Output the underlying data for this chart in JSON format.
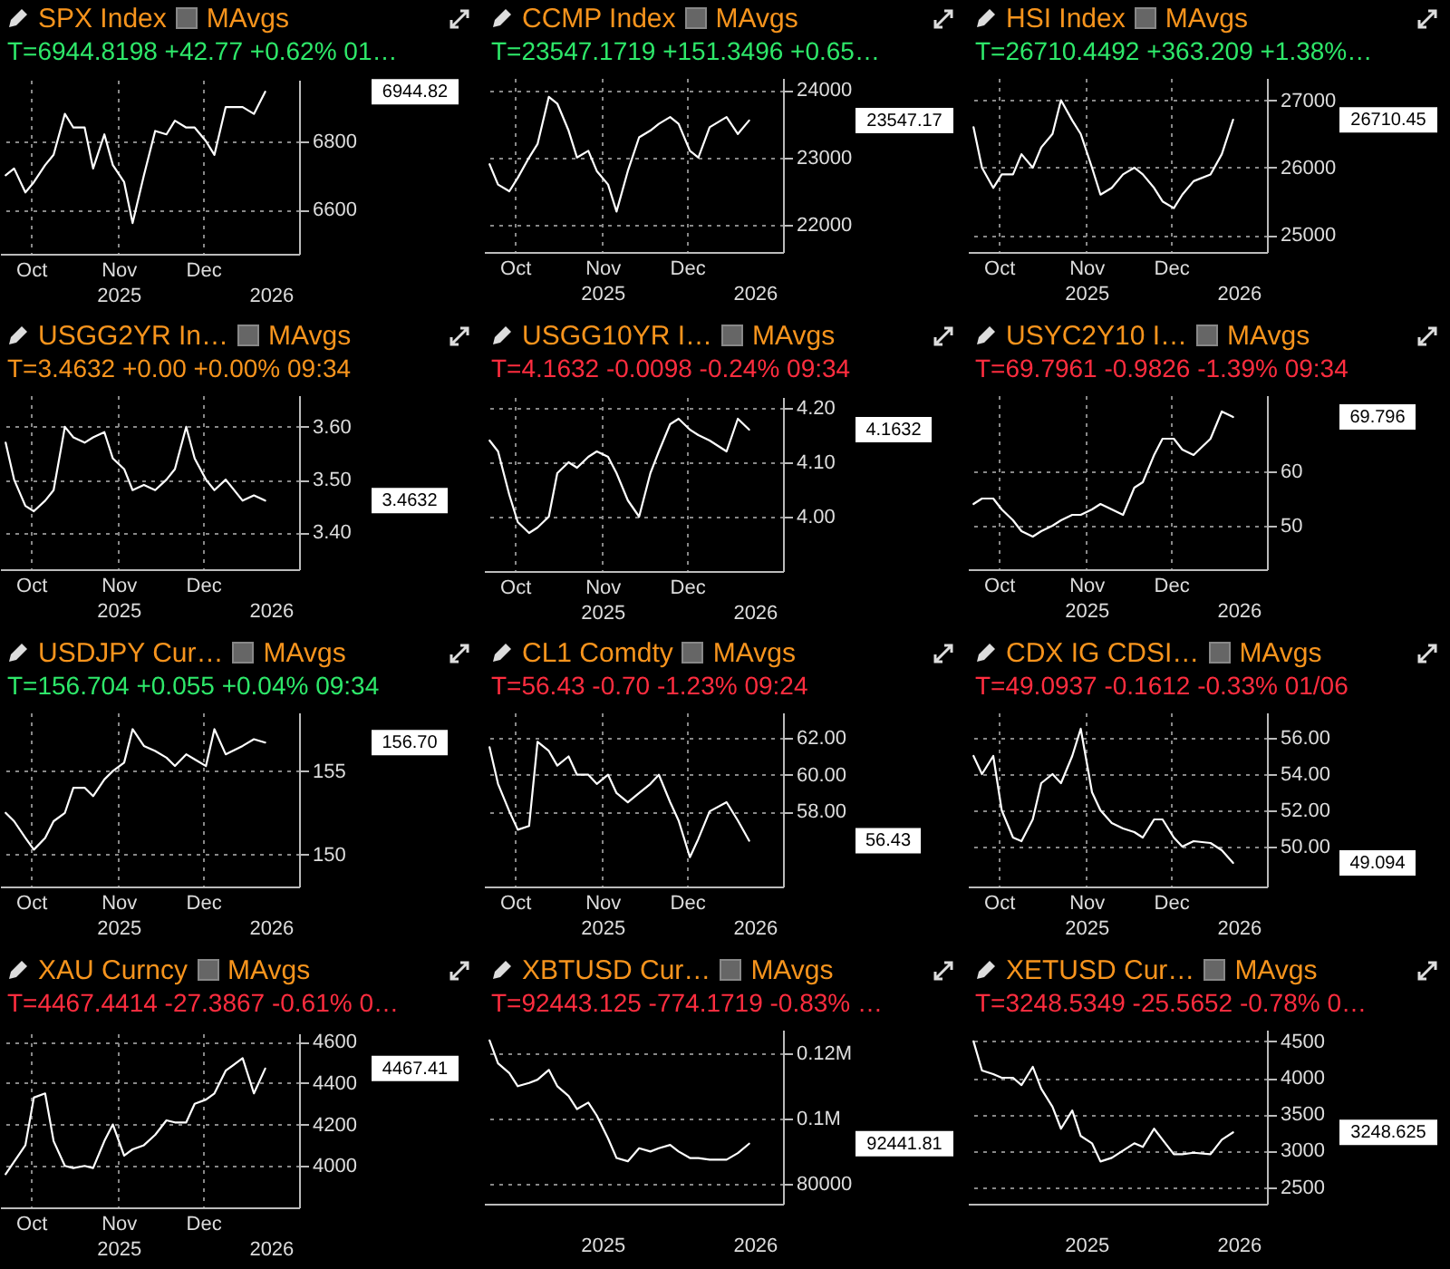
{
  "chart_data": [
    {
      "type": "line",
      "title": "SPX Index",
      "subtitle": "T=6944.8198 +42.77 +0.62% 01…",
      "x": [
        "2025-10-06",
        "2025-10-09",
        "2025-10-13",
        "2025-10-16",
        "2025-10-20",
        "2025-10-23",
        "2025-10-27",
        "2025-10-30",
        "2025-11-03",
        "2025-11-06",
        "2025-11-10",
        "2025-11-13",
        "2025-11-17",
        "2025-11-20",
        "2025-11-24",
        "2025-11-28",
        "2025-12-02",
        "2025-12-05",
        "2025-12-09",
        "2025-12-12",
        "2025-12-16",
        "2025-12-19",
        "2025-12-23",
        "2025-12-29",
        "2026-01-02",
        "2026-01-06"
      ],
      "series": [
        {
          "color": "#ffffff",
          "values": [
            6700,
            6720,
            6650,
            6680,
            6730,
            6760,
            6880,
            6840,
            6840,
            6720,
            6820,
            6730,
            6680,
            6560,
            6700,
            6830,
            6820,
            6860,
            6840,
            6840,
            6800,
            6760,
            6900,
            6900,
            6880,
            6945
          ]
        }
      ],
      "xlim": [
        "2025-10-04",
        "2026-01-18"
      ],
      "xticks": [
        {
          "value": "2025-10-15",
          "label": "Oct"
        },
        {
          "value": "2025-11-15",
          "label": "Nov"
        },
        {
          "value": "2025-12-15",
          "label": "Dec"
        }
      ],
      "x2lim": [
        "2025-10-04",
        "2026-01-18"
      ],
      "x2ticks": [
        {
          "value": "2025-11-15",
          "label": "2025"
        },
        {
          "value": "2026-01-08",
          "label": "2026"
        }
      ],
      "ylim": [
        6470,
        6980
      ],
      "yticks": [
        6600,
        6800
      ],
      "grid": true,
      "annotations": [
        "MAvgs",
        "6944.82"
      ]
    },
    {
      "type": "line",
      "title": "CCMP Index",
      "subtitle": "T=23547.1719 +151.3496 +0.65…",
      "x": [
        "2025-10-06",
        "2025-10-09",
        "2025-10-13",
        "2025-10-16",
        "2025-10-20",
        "2025-10-23",
        "2025-10-27",
        "2025-10-30",
        "2025-11-03",
        "2025-11-06",
        "2025-11-10",
        "2025-11-13",
        "2025-11-17",
        "2025-11-20",
        "2025-11-24",
        "2025-11-28",
        "2025-12-02",
        "2025-12-05",
        "2025-12-09",
        "2025-12-12",
        "2025-12-16",
        "2025-12-19",
        "2025-12-23",
        "2025-12-29",
        "2026-01-02",
        "2026-01-06"
      ],
      "series": [
        {
          "color": "#ffffff",
          "values": [
            22900,
            22600,
            22500,
            22700,
            23000,
            23200,
            23900,
            23800,
            23400,
            23000,
            23100,
            22800,
            22600,
            22200,
            22800,
            23300,
            23400,
            23500,
            23600,
            23500,
            23100,
            23000,
            23450,
            23600,
            23350,
            23550
          ]
        }
      ],
      "xlim": [
        "2025-10-04",
        "2026-01-18"
      ],
      "xticks": [
        {
          "value": "2025-10-15",
          "label": "Oct"
        },
        {
          "value": "2025-11-15",
          "label": "Nov"
        },
        {
          "value": "2025-12-15",
          "label": "Dec"
        }
      ],
      "x2lim": [
        "2025-10-04",
        "2026-01-18"
      ],
      "x2ticks": [
        {
          "value": "2025-11-15",
          "label": "2025"
        },
        {
          "value": "2026-01-08",
          "label": "2026"
        }
      ],
      "ylim": [
        21600,
        24180
      ],
      "yticks": [
        22000,
        23000,
        24000
      ],
      "grid": true,
      "annotations": [
        "MAvgs",
        "23547.17"
      ]
    },
    {
      "type": "line",
      "title": "HSI Index",
      "subtitle": "T=26710.4492 +363.209 +1.38%…",
      "x": [
        "2025-10-06",
        "2025-10-09",
        "2025-10-13",
        "2025-10-16",
        "2025-10-20",
        "2025-10-23",
        "2025-10-27",
        "2025-10-30",
        "2025-11-03",
        "2025-11-06",
        "2025-11-10",
        "2025-11-13",
        "2025-11-17",
        "2025-11-20",
        "2025-11-24",
        "2025-11-28",
        "2025-12-02",
        "2025-12-05",
        "2025-12-09",
        "2025-12-12",
        "2025-12-16",
        "2025-12-19",
        "2025-12-23",
        "2025-12-29",
        "2026-01-02",
        "2026-01-06"
      ],
      "series": [
        {
          "color": "#ffffff",
          "values": [
            26600,
            26000,
            25700,
            25900,
            25900,
            26200,
            26000,
            26300,
            26500,
            27000,
            26700,
            26500,
            26000,
            25600,
            25700,
            25900,
            26000,
            25900,
            25700,
            25500,
            25400,
            25600,
            25800,
            25900,
            26200,
            26710
          ]
        }
      ],
      "xlim": [
        "2025-10-04",
        "2026-01-18"
      ],
      "xticks": [
        {
          "value": "2025-10-15",
          "label": "Oct"
        },
        {
          "value": "2025-11-15",
          "label": "Nov"
        },
        {
          "value": "2025-12-15",
          "label": "Dec"
        }
      ],
      "x2lim": [
        "2025-10-04",
        "2026-01-18"
      ],
      "x2ticks": [
        {
          "value": "2025-11-15",
          "label": "2025"
        },
        {
          "value": "2026-01-08",
          "label": "2026"
        }
      ],
      "ylim": [
        24750,
        27330
      ],
      "yticks": [
        25000,
        26000,
        27000
      ],
      "grid": true,
      "annotations": [
        "MAvgs",
        "26710.45"
      ]
    },
    {
      "type": "line",
      "title": "USGG2YR In…",
      "subtitle": "T=3.4632 +0.00 +0.00% 09:34",
      "x": [
        "2025-10-06",
        "2025-10-09",
        "2025-10-13",
        "2025-10-16",
        "2025-10-20",
        "2025-10-23",
        "2025-10-27",
        "2025-10-30",
        "2025-11-03",
        "2025-11-06",
        "2025-11-10",
        "2025-11-13",
        "2025-11-17",
        "2025-11-20",
        "2025-11-24",
        "2025-11-28",
        "2025-12-02",
        "2025-12-05",
        "2025-12-09",
        "2025-12-12",
        "2025-12-16",
        "2025-12-19",
        "2025-12-23",
        "2025-12-29",
        "2026-01-02",
        "2026-01-06"
      ],
      "series": [
        {
          "color": "#ffffff",
          "values": [
            3.57,
            3.5,
            3.45,
            3.44,
            3.46,
            3.48,
            3.6,
            3.58,
            3.57,
            3.58,
            3.59,
            3.54,
            3.52,
            3.48,
            3.49,
            3.48,
            3.5,
            3.52,
            3.6,
            3.54,
            3.5,
            3.48,
            3.5,
            3.46,
            3.47,
            3.46
          ]
        }
      ],
      "xlim": [
        "2025-10-04",
        "2026-01-18"
      ],
      "xticks": [
        {
          "value": "2025-10-15",
          "label": "Oct"
        },
        {
          "value": "2025-11-15",
          "label": "Nov"
        },
        {
          "value": "2025-12-15",
          "label": "Dec"
        }
      ],
      "x2lim": [
        "2025-10-04",
        "2026-01-18"
      ],
      "x2ticks": [
        {
          "value": "2025-11-15",
          "label": "2025"
        },
        {
          "value": "2026-01-08",
          "label": "2026"
        }
      ],
      "ylim": [
        3.33,
        3.66
      ],
      "yticks": [
        {
          "value": 3.4,
          "label": "3.40"
        },
        {
          "value": 3.5,
          "label": "3.50"
        },
        {
          "value": 3.6,
          "label": "3.60"
        }
      ],
      "grid": true,
      "annotations": [
        "MAvgs",
        "3.4632"
      ]
    },
    {
      "type": "line",
      "title": "USGG10YR I…",
      "subtitle": "T=4.1632 -0.0098 -0.24% 09:34",
      "x": [
        "2025-10-06",
        "2025-10-09",
        "2025-10-13",
        "2025-10-16",
        "2025-10-20",
        "2025-10-23",
        "2025-10-27",
        "2025-10-30",
        "2025-11-03",
        "2025-11-06",
        "2025-11-10",
        "2025-11-13",
        "2025-11-17",
        "2025-11-20",
        "2025-11-24",
        "2025-11-28",
        "2025-12-02",
        "2025-12-05",
        "2025-12-09",
        "2025-12-12",
        "2025-12-16",
        "2025-12-19",
        "2025-12-23",
        "2025-12-29",
        "2026-01-02",
        "2026-01-06"
      ],
      "series": [
        {
          "color": "#ffffff",
          "values": [
            4.14,
            4.12,
            4.04,
            3.99,
            3.97,
            3.98,
            4.0,
            4.08,
            4.1,
            4.09,
            4.11,
            4.12,
            4.11,
            4.08,
            4.03,
            4.0,
            4.08,
            4.12,
            4.17,
            4.18,
            4.16,
            4.15,
            4.14,
            4.12,
            4.18,
            4.16
          ]
        }
      ],
      "xlim": [
        "2025-10-04",
        "2026-01-18"
      ],
      "xticks": [
        {
          "value": "2025-10-15",
          "label": "Oct"
        },
        {
          "value": "2025-11-15",
          "label": "Nov"
        },
        {
          "value": "2025-12-15",
          "label": "Dec"
        }
      ],
      "x2lim": [
        "2025-10-04",
        "2026-01-18"
      ],
      "x2ticks": [
        {
          "value": "2025-11-15",
          "label": "2025"
        },
        {
          "value": "2026-01-08",
          "label": "2026"
        }
      ],
      "ylim": [
        3.9,
        4.22
      ],
      "yticks": [
        {
          "value": 4.0,
          "label": "4.00"
        },
        {
          "value": 4.1,
          "label": "4.10"
        },
        {
          "value": 4.2,
          "label": "4.20"
        }
      ],
      "grid": true,
      "annotations": [
        "MAvgs",
        "4.1632"
      ]
    },
    {
      "type": "line",
      "title": "USYC2Y10 I…",
      "subtitle": "T=69.7961 -0.9826 -1.39% 09:34",
      "x": [
        "2025-10-06",
        "2025-10-09",
        "2025-10-13",
        "2025-10-16",
        "2025-10-20",
        "2025-10-23",
        "2025-10-27",
        "2025-10-30",
        "2025-11-03",
        "2025-11-06",
        "2025-11-10",
        "2025-11-13",
        "2025-11-17",
        "2025-11-20",
        "2025-11-24",
        "2025-11-28",
        "2025-12-02",
        "2025-12-05",
        "2025-12-09",
        "2025-12-12",
        "2025-12-16",
        "2025-12-19",
        "2025-12-23",
        "2025-12-29",
        "2026-01-02",
        "2026-01-06"
      ],
      "series": [
        {
          "color": "#ffffff",
          "values": [
            54,
            55,
            55,
            53,
            51,
            49,
            48,
            49,
            50,
            51,
            52,
            52,
            53,
            54,
            53,
            52,
            57,
            58,
            63,
            66,
            66,
            64,
            63,
            66,
            71,
            70
          ]
        }
      ],
      "xlim": [
        "2025-10-04",
        "2026-01-18"
      ],
      "xticks": [
        {
          "value": "2025-10-15",
          "label": "Oct"
        },
        {
          "value": "2025-11-15",
          "label": "Nov"
        },
        {
          "value": "2025-12-15",
          "label": "Dec"
        }
      ],
      "x2lim": [
        "2025-10-04",
        "2026-01-18"
      ],
      "x2ticks": [
        {
          "value": "2025-11-15",
          "label": "2025"
        },
        {
          "value": "2026-01-08",
          "label": "2026"
        }
      ],
      "ylim": [
        42,
        74
      ],
      "yticks": [
        50,
        60
      ],
      "grid": true,
      "annotations": [
        "MAvgs",
        "69.796"
      ]
    },
    {
      "type": "line",
      "title": "USDJPY Cur…",
      "subtitle": "T=156.704 +0.055 +0.04% 09:34",
      "x": [
        "2025-10-06",
        "2025-10-09",
        "2025-10-13",
        "2025-10-16",
        "2025-10-20",
        "2025-10-23",
        "2025-10-27",
        "2025-10-30",
        "2025-11-03",
        "2025-11-06",
        "2025-11-10",
        "2025-11-13",
        "2025-11-17",
        "2025-11-20",
        "2025-11-24",
        "2025-11-28",
        "2025-12-02",
        "2025-12-05",
        "2025-12-09",
        "2025-12-12",
        "2025-12-16",
        "2025-12-19",
        "2025-12-23",
        "2025-12-29",
        "2026-01-02",
        "2026-01-06"
      ],
      "series": [
        {
          "color": "#ffffff",
          "values": [
            152.5,
            152,
            151,
            150.3,
            151,
            152,
            152.5,
            154,
            154,
            153.5,
            154.5,
            155,
            155.5,
            157.5,
            156.5,
            156.2,
            155.8,
            155.3,
            156,
            155.7,
            155.3,
            157.5,
            156,
            156.5,
            156.9,
            156.7
          ]
        }
      ],
      "xlim": [
        "2025-10-04",
        "2026-01-18"
      ],
      "xticks": [
        {
          "value": "2025-10-15",
          "label": "Oct"
        },
        {
          "value": "2025-11-15",
          "label": "Nov"
        },
        {
          "value": "2025-12-15",
          "label": "Dec"
        }
      ],
      "x2lim": [
        "2025-10-04",
        "2026-01-18"
      ],
      "x2ticks": [
        {
          "value": "2025-11-15",
          "label": "2025"
        },
        {
          "value": "2026-01-08",
          "label": "2026"
        }
      ],
      "ylim": [
        148.1,
        158.5
      ],
      "yticks": [
        150,
        155
      ],
      "grid": true,
      "annotations": [
        "MAvgs",
        "156.70"
      ]
    },
    {
      "type": "line",
      "title": "CL1 Comdty",
      "subtitle": "T=56.43 -0.70 -1.23% 09:24",
      "x": [
        "2025-10-06",
        "2025-10-09",
        "2025-10-13",
        "2025-10-16",
        "2025-10-20",
        "2025-10-23",
        "2025-10-27",
        "2025-10-30",
        "2025-11-03",
        "2025-11-06",
        "2025-11-10",
        "2025-11-13",
        "2025-11-17",
        "2025-11-20",
        "2025-11-24",
        "2025-11-28",
        "2025-12-02",
        "2025-12-05",
        "2025-12-09",
        "2025-12-12",
        "2025-12-16",
        "2025-12-19",
        "2025-12-23",
        "2025-12-29",
        "2026-01-02",
        "2026-01-06"
      ],
      "series": [
        {
          "color": "#ffffff",
          "values": [
            61.5,
            59.5,
            58,
            57,
            57.2,
            61.8,
            61.3,
            60.5,
            61,
            60,
            60,
            59.5,
            60,
            59,
            58.5,
            59,
            59.5,
            60,
            58.5,
            57.5,
            55.5,
            56.5,
            58,
            58.5,
            57.5,
            56.4
          ]
        }
      ],
      "xlim": [
        "2025-10-04",
        "2026-01-18"
      ],
      "xticks": [
        {
          "value": "2025-10-15",
          "label": "Oct"
        },
        {
          "value": "2025-11-15",
          "label": "Nov"
        },
        {
          "value": "2025-12-15",
          "label": "Dec"
        }
      ],
      "x2lim": [
        "2025-10-04",
        "2026-01-18"
      ],
      "x2ticks": [
        {
          "value": "2025-11-15",
          "label": "2025"
        },
        {
          "value": "2026-01-08",
          "label": "2026"
        }
      ],
      "ylim": [
        53.9,
        63.4
      ],
      "yticks": [
        {
          "value": 58,
          "label": "58.00"
        },
        {
          "value": 60,
          "label": "60.00"
        },
        {
          "value": 62,
          "label": "62.00"
        }
      ],
      "grid": true,
      "annotations": [
        "MAvgs",
        "56.43"
      ]
    },
    {
      "type": "line",
      "title": "CDX IG CDSI…",
      "subtitle": "T=49.0937 -0.1612 -0.33% 01/06",
      "x": [
        "2025-10-06",
        "2025-10-09",
        "2025-10-13",
        "2025-10-16",
        "2025-10-20",
        "2025-10-23",
        "2025-10-27",
        "2025-10-30",
        "2025-11-03",
        "2025-11-06",
        "2025-11-10",
        "2025-11-13",
        "2025-11-17",
        "2025-11-20",
        "2025-11-24",
        "2025-11-28",
        "2025-12-02",
        "2025-12-05",
        "2025-12-09",
        "2025-12-12",
        "2025-12-16",
        "2025-12-19",
        "2025-12-23",
        "2025-12-29",
        "2026-01-02",
        "2026-01-06"
      ],
      "series": [
        {
          "color": "#ffffff",
          "values": [
            55,
            54,
            55,
            52,
            50.5,
            50.3,
            51.5,
            53.5,
            54,
            53.5,
            55,
            56.5,
            53,
            52,
            51.3,
            51,
            50.8,
            50.5,
            51.5,
            51.5,
            50.5,
            50,
            50.3,
            50.2,
            49.8,
            49.1
          ]
        }
      ],
      "xlim": [
        "2025-10-04",
        "2026-01-18"
      ],
      "xticks": [
        {
          "value": "2025-10-15",
          "label": "Oct"
        },
        {
          "value": "2025-11-15",
          "label": "Nov"
        },
        {
          "value": "2025-12-15",
          "label": "Dec"
        }
      ],
      "x2lim": [
        "2025-10-04",
        "2026-01-18"
      ],
      "x2ticks": [
        {
          "value": "2025-11-15",
          "label": "2025"
        },
        {
          "value": "2026-01-08",
          "label": "2026"
        }
      ],
      "ylim": [
        47.8,
        57.4
      ],
      "yticks": [
        {
          "value": 50,
          "label": "50.00"
        },
        {
          "value": 52,
          "label": "52.00"
        },
        {
          "value": 54,
          "label": "54.00"
        },
        {
          "value": 56,
          "label": "56.00"
        }
      ],
      "grid": true,
      "annotations": [
        "MAvgs",
        "49.094"
      ]
    },
    {
      "type": "line",
      "title": "XAU Curncy",
      "subtitle": "T=4467.4414 -27.3867 -0.61% 0…",
      "x": [
        "2025-10-06",
        "2025-10-09",
        "2025-10-13",
        "2025-10-16",
        "2025-10-20",
        "2025-10-23",
        "2025-10-27",
        "2025-10-30",
        "2025-11-03",
        "2025-11-06",
        "2025-11-10",
        "2025-11-13",
        "2025-11-17",
        "2025-11-20",
        "2025-11-24",
        "2025-11-28",
        "2025-12-02",
        "2025-12-05",
        "2025-12-09",
        "2025-12-12",
        "2025-12-16",
        "2025-12-19",
        "2025-12-23",
        "2025-12-29",
        "2026-01-02",
        "2026-01-06"
      ],
      "series": [
        {
          "color": "#ffffff",
          "values": [
            3960,
            4020,
            4100,
            4330,
            4350,
            4120,
            4000,
            3990,
            4000,
            3990,
            4120,
            4200,
            4050,
            4080,
            4100,
            4150,
            4220,
            4210,
            4210,
            4300,
            4320,
            4350,
            4460,
            4520,
            4350,
            4470
          ]
        }
      ],
      "xlim": [
        "2025-10-04",
        "2026-01-18"
      ],
      "xticks": [
        {
          "value": "2025-10-15",
          "label": "Oct"
        },
        {
          "value": "2025-11-15",
          "label": "Nov"
        },
        {
          "value": "2025-12-15",
          "label": "Dec"
        }
      ],
      "x2lim": [
        "2025-10-04",
        "2026-01-18"
      ],
      "x2ticks": [
        {
          "value": "2025-11-15",
          "label": "2025"
        },
        {
          "value": "2026-01-08",
          "label": "2026"
        }
      ],
      "ylim": [
        3800,
        4640
      ],
      "yticks": [
        4000,
        4200,
        4400,
        4600
      ],
      "grid": true,
      "annotations": [
        "MAvgs",
        "4467.41"
      ]
    },
    {
      "type": "line",
      "title": "XBTUSD Cur…",
      "subtitle": "T=92443.125 -774.1719 -0.83% …",
      "x": [
        "2025-10-06",
        "2025-10-09",
        "2025-10-13",
        "2025-10-16",
        "2025-10-20",
        "2025-10-23",
        "2025-10-27",
        "2025-10-30",
        "2025-11-03",
        "2025-11-06",
        "2025-11-10",
        "2025-11-13",
        "2025-11-17",
        "2025-11-20",
        "2025-11-24",
        "2025-11-28",
        "2025-12-02",
        "2025-12-05",
        "2025-12-09",
        "2025-12-12",
        "2025-12-16",
        "2025-12-19",
        "2025-12-23",
        "2025-12-29",
        "2026-01-02",
        "2026-01-06"
      ],
      "series": [
        {
          "color": "#ffffff",
          "values": [
            124000,
            117000,
            114000,
            110000,
            111000,
            112000,
            115000,
            110000,
            107000,
            103000,
            105000,
            101000,
            94000,
            88000,
            87000,
            91000,
            90000,
            91000,
            92000,
            90000,
            88000,
            88000,
            87500,
            87500,
            89500,
            92400
          ]
        }
      ],
      "xlim": [
        "2025-10-04",
        "2026-01-18"
      ],
      "x2lim": [
        "2025-10-04",
        "2026-01-18"
      ],
      "x2ticks": [
        {
          "value": "2025-11-15",
          "label": "2025"
        },
        {
          "value": "2026-01-08",
          "label": "2026"
        }
      ],
      "ylim": [
        74000,
        127300
      ],
      "yticks": [
        80000,
        {
          "value": 100000,
          "label": "0.1M"
        },
        {
          "value": 120000,
          "label": "0.12M"
        }
      ],
      "grid": true,
      "annotations": [
        "MAvgs",
        "92441.81"
      ]
    },
    {
      "type": "line",
      "title": "XETUSD Cur…",
      "subtitle": "T=3248.5349 -25.5652 -0.78% 0…",
      "x": [
        "2025-10-06",
        "2025-10-09",
        "2025-10-13",
        "2025-10-16",
        "2025-10-20",
        "2025-10-23",
        "2025-10-27",
        "2025-10-30",
        "2025-11-03",
        "2025-11-06",
        "2025-11-10",
        "2025-11-13",
        "2025-11-17",
        "2025-11-20",
        "2025-11-24",
        "2025-11-28",
        "2025-12-02",
        "2025-12-05",
        "2025-12-09",
        "2025-12-12",
        "2025-12-16",
        "2025-12-19",
        "2025-12-23",
        "2025-12-29",
        "2026-01-02",
        "2026-01-06"
      ],
      "series": [
        {
          "color": "#ffffff",
          "values": [
            4500,
            4100,
            4050,
            4000,
            4000,
            3900,
            4150,
            3850,
            3600,
            3300,
            3550,
            3200,
            3100,
            2850,
            2900,
            3000,
            3100,
            3050,
            3300,
            3150,
            2950,
            2950,
            2970,
            2950,
            3150,
            3250
          ]
        }
      ],
      "xlim": [
        "2025-10-04",
        "2026-01-18"
      ],
      "x2lim": [
        "2025-10-04",
        "2026-01-18"
      ],
      "x2ticks": [
        {
          "value": "2025-11-15",
          "label": "2025"
        },
        {
          "value": "2026-01-08",
          "label": "2026"
        }
      ],
      "ylim": [
        2270,
        4660
      ],
      "yticks": [
        2500,
        3000,
        3500,
        4000,
        4500
      ],
      "grid": true,
      "annotations": [
        "MAvgs",
        "3248.625"
      ]
    }
  ]
}
